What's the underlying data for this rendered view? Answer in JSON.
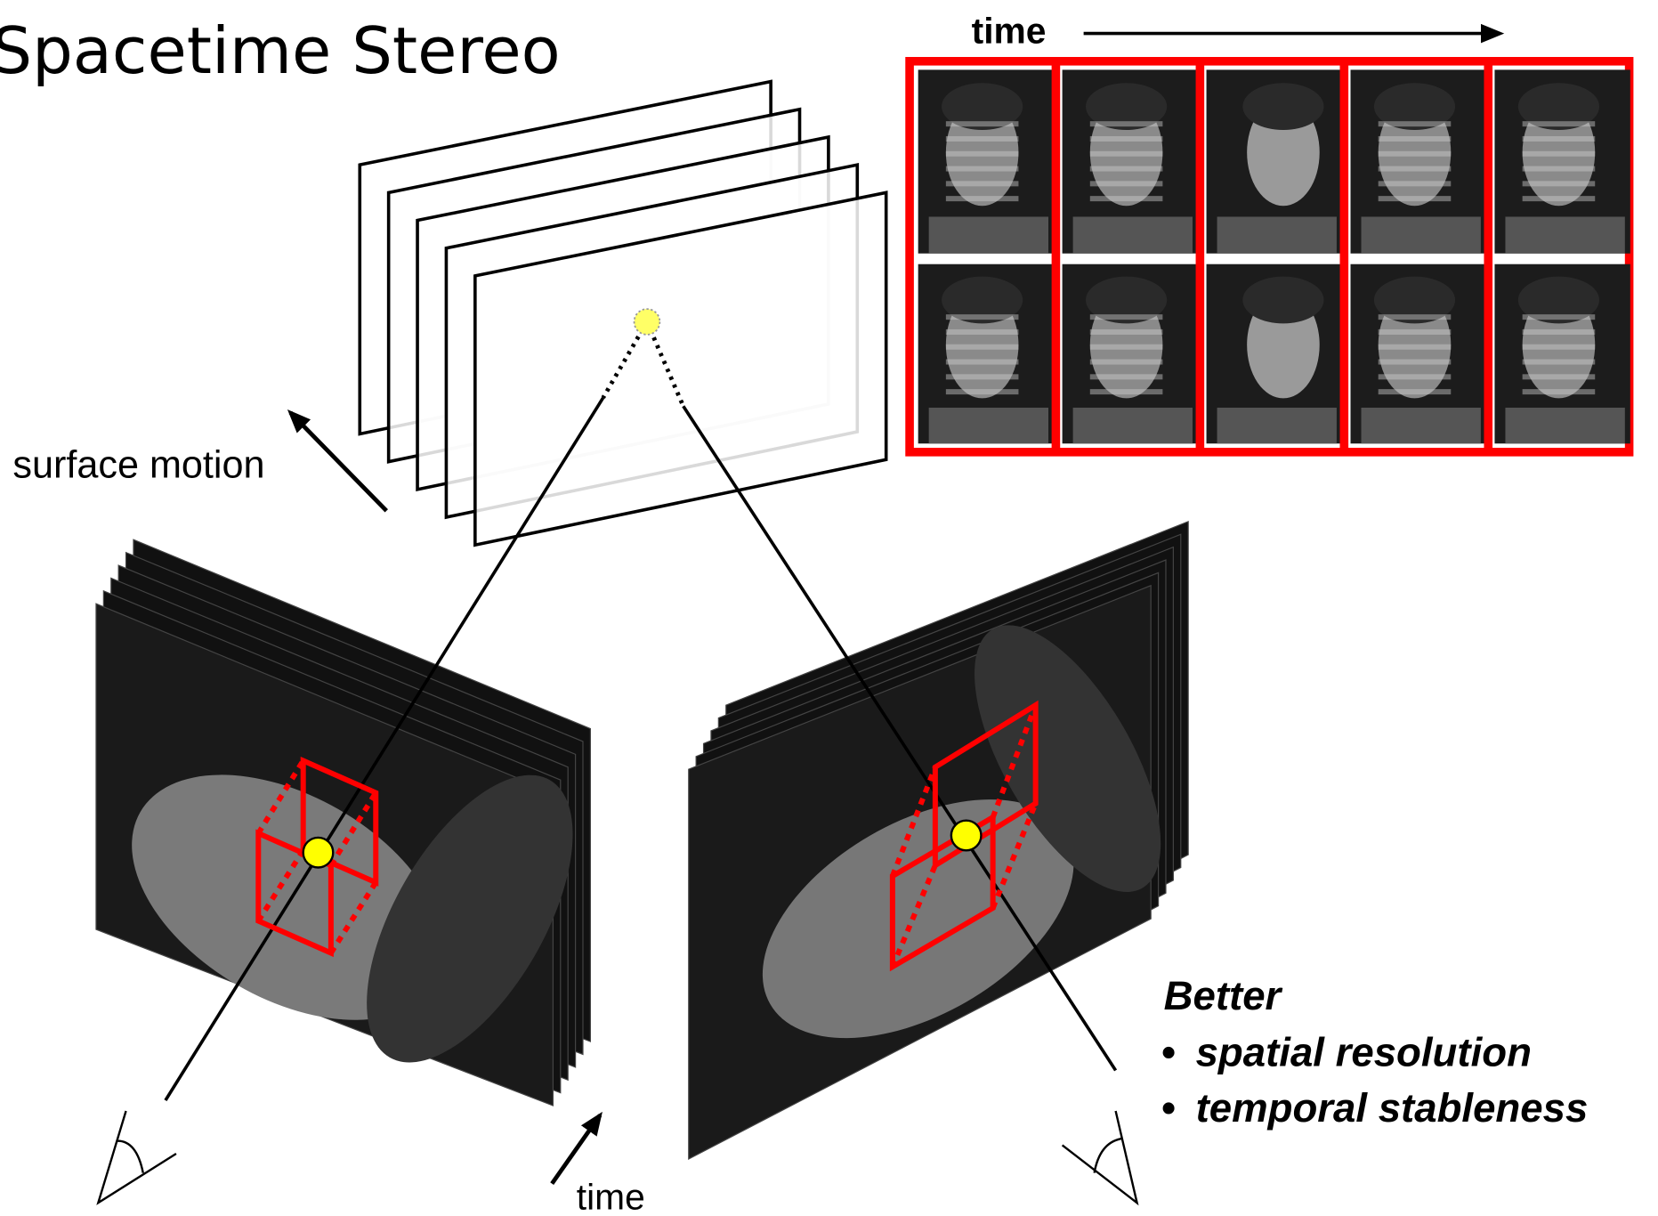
{
  "title": "Spacetime Stereo",
  "timeline": {
    "label": "time"
  },
  "annotations": {
    "surface_motion": "surface motion",
    "time": "time"
  },
  "benefits": {
    "heading": "Better",
    "items": [
      "spatial resolution",
      "temporal stableness"
    ]
  }
}
